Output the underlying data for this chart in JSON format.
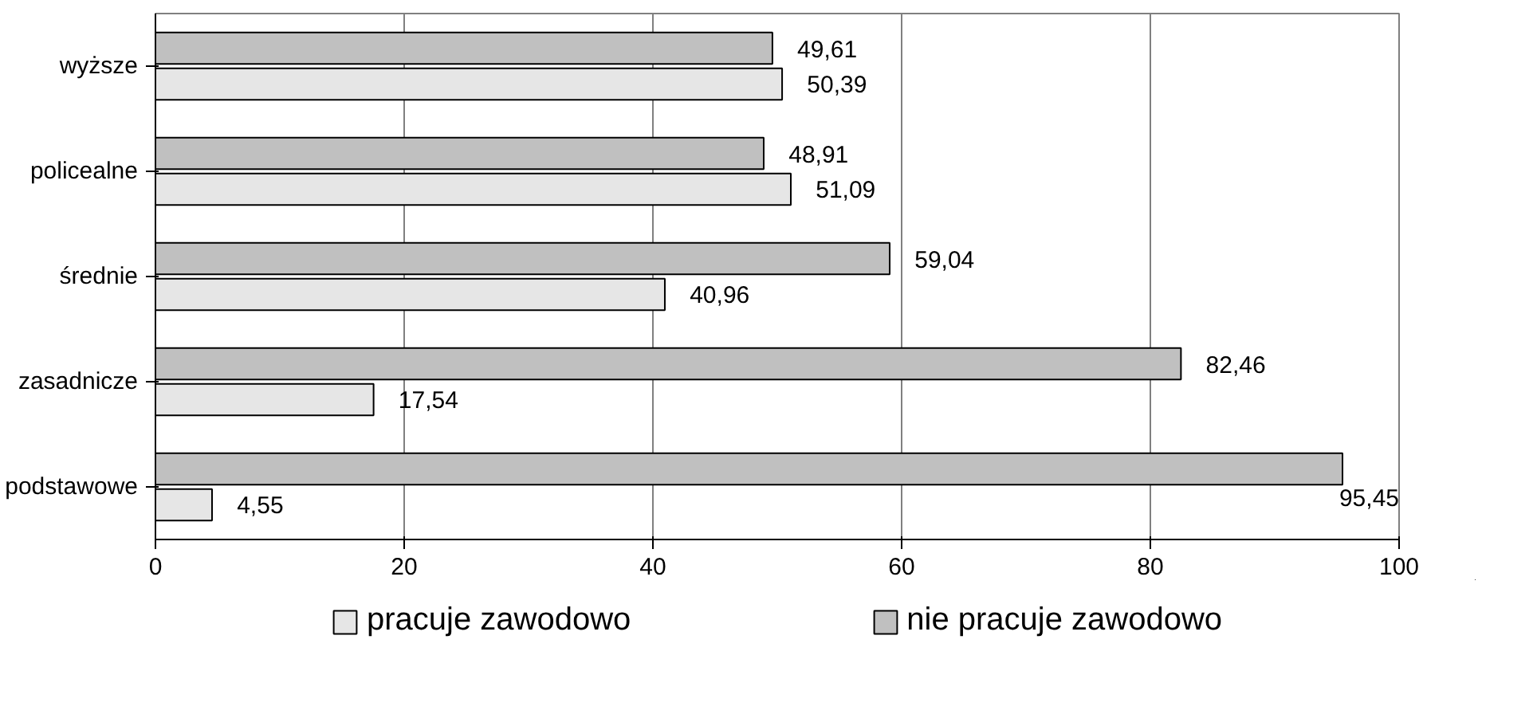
{
  "chart_data": {
    "type": "bar",
    "orientation": "horizontal",
    "categories": [
      "wyższe",
      "policealne",
      "średnie",
      "zasadnicze",
      "podstawowe"
    ],
    "series": [
      {
        "name": "pracuje zawodowo",
        "color": "#e6e6e6",
        "values": [
          50.39,
          51.09,
          40.96,
          17.54,
          4.55
        ],
        "value_labels": [
          "50,39",
          "51,09",
          "40,96",
          "17,54",
          "4,55"
        ]
      },
      {
        "name": "nie pracuje zawodowo",
        "color": "#c0c0c0",
        "values": [
          49.61,
          48.91,
          59.04,
          82.46,
          95.45
        ],
        "value_labels": [
          "49,61",
          "48,91",
          "59,04",
          "82,46",
          "95,45"
        ]
      }
    ],
    "xlim": [
      0,
      100
    ],
    "xticks": [
      0,
      20,
      40,
      60,
      80,
      100
    ],
    "grid": "x",
    "legend": "bottom"
  }
}
